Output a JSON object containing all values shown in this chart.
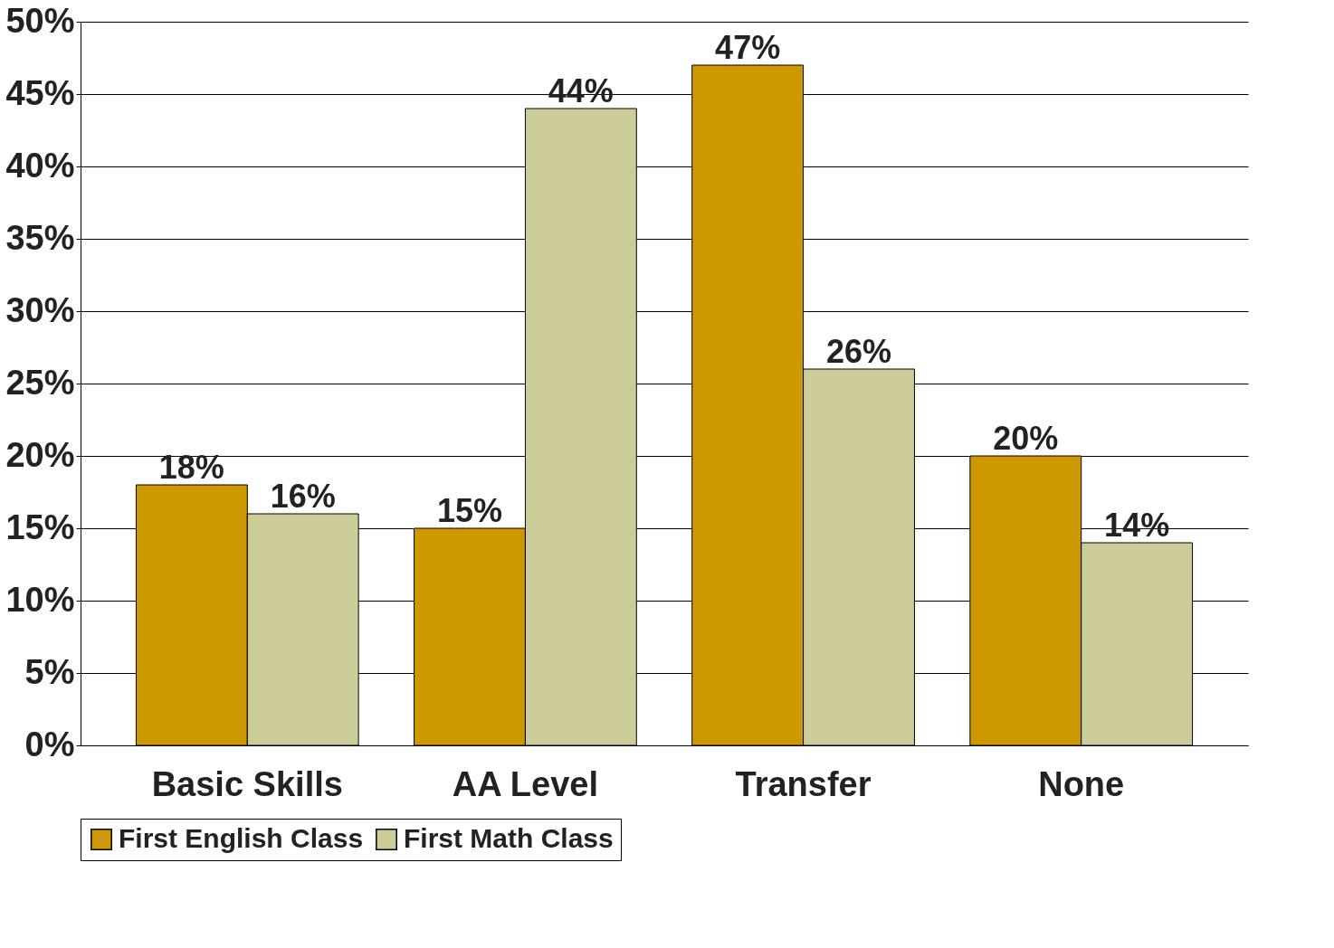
{
  "chart_data": {
    "type": "bar",
    "categories": [
      "Basic Skills",
      "AA Level",
      "Transfer",
      "None"
    ],
    "series": [
      {
        "name": "First English Class",
        "color": "#cc9900",
        "values": [
          18,
          15,
          47,
          20
        ],
        "value_labels": [
          "18%",
          "15%",
          "47%",
          "20%"
        ]
      },
      {
        "name": "First Math Class",
        "color": "#cccc99",
        "values": [
          16,
          44,
          26,
          14
        ],
        "value_labels": [
          "16%",
          "44%",
          "26%",
          "14%"
        ]
      }
    ],
    "ylim": [
      0,
      50
    ],
    "yticks": [
      {
        "value": 0,
        "label": "0%"
      },
      {
        "value": 5,
        "label": "5%"
      },
      {
        "value": 10,
        "label": "10%"
      },
      {
        "value": 15,
        "label": "15%"
      },
      {
        "value": 20,
        "label": "20%"
      },
      {
        "value": 25,
        "label": "25%"
      },
      {
        "value": 30,
        "label": "30%"
      },
      {
        "value": 35,
        "label": "35%"
      },
      {
        "value": 40,
        "label": "40%"
      },
      {
        "value": 45,
        "label": "45%"
      },
      {
        "value": 50,
        "label": "50%"
      }
    ],
    "grid": "y",
    "legend": "bottom"
  }
}
